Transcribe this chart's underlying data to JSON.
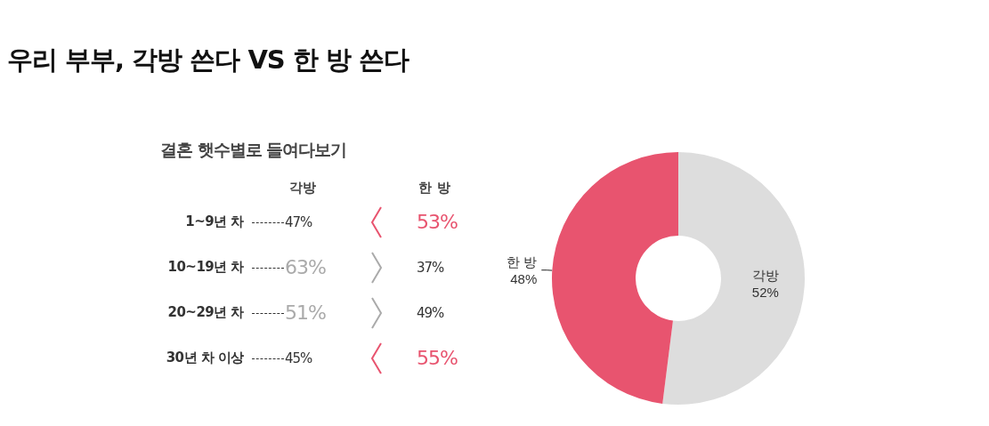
{
  "chart_data": [
    {
      "type": "other",
      "title": "우리 부부, 각방 쓴다 VS 한 방 쓴다",
      "subtitle": "결혼 햇수별로 들여다보기",
      "categories": [
        "1~9년 차",
        "10~19년 차",
        "20~29년 차",
        "30년 차 이상"
      ],
      "data_labels": true,
      "series": [
        {
          "name": "각방",
          "values": [
            47,
            63,
            51,
            45
          ],
          "value_labels": [
            "47%",
            "63%",
            "51%",
            "45%"
          ]
        },
        {
          "name": "한 방",
          "values": [
            53,
            37,
            49,
            55
          ],
          "value_labels": [
            "53%",
            "37%",
            "49%",
            "55%"
          ]
        }
      ]
    },
    {
      "type": "donut",
      "categories": [
        "각방",
        "한 방"
      ],
      "values": [
        52,
        48
      ],
      "colors": [
        "#dddddd",
        "#e8546f"
      ],
      "value_labels": [
        "52%",
        "48%"
      ]
    }
  ]
}
